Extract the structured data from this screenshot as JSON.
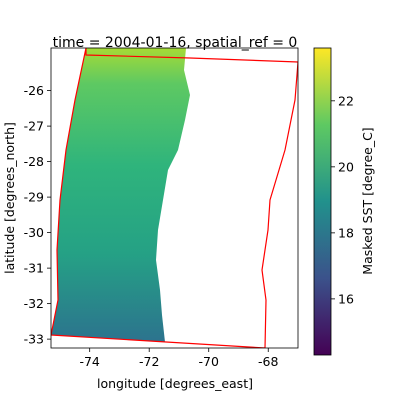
{
  "chart_data": {
    "type": "raster",
    "title": "time = 2004-01-16, spatial_ref = 0",
    "xlabel": "longitude [degrees_east]",
    "ylabel": "latitude [degrees_north]",
    "xlim": [
      -75.3,
      -67.0
    ],
    "ylim": [
      -33.25,
      -24.8
    ],
    "xticks": [
      -74,
      -72,
      -70,
      -68
    ],
    "yticks": [
      -26,
      -27,
      -28,
      -29,
      -30,
      -31,
      -32,
      -33
    ],
    "colorbar": {
      "label": "Masked SST [degree_C]",
      "lim": [
        14.3,
        23.6
      ],
      "ticks": [
        16,
        18,
        20,
        22
      ]
    }
  }
}
